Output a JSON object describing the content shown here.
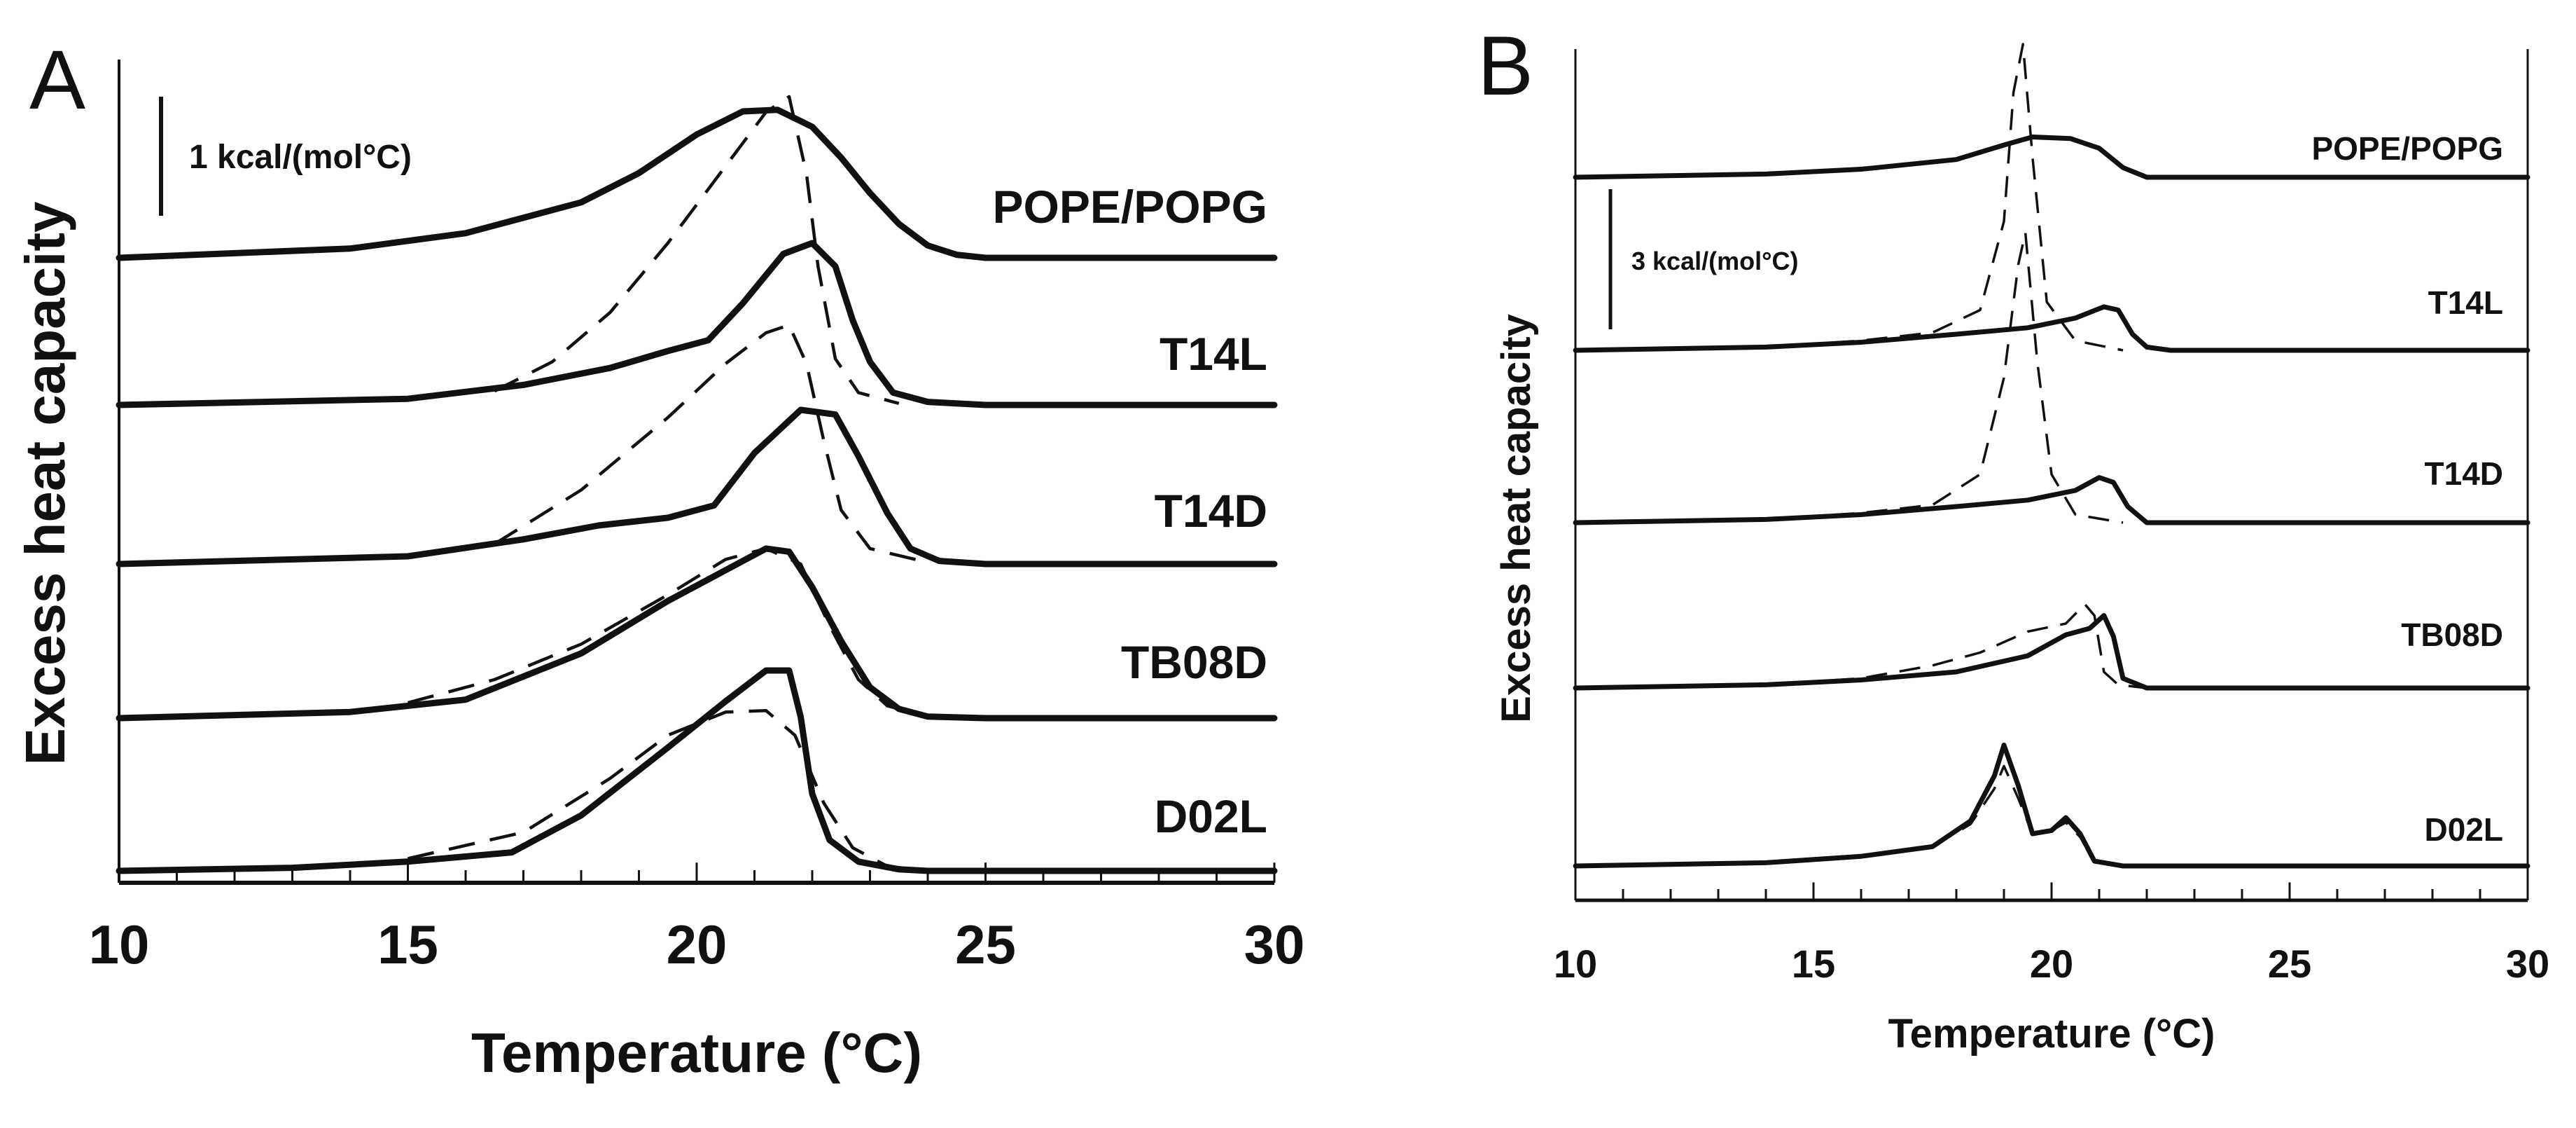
{
  "chart_data": [
    {
      "panel": "A",
      "type": "line",
      "title": "",
      "xlabel": "Temperature (°C)",
      "ylabel": "Excess heat capacity",
      "xlim": [
        10,
        30
      ],
      "xticks": [
        "10",
        "15",
        "20",
        "25",
        "30"
      ],
      "scale_bar": "1 kcal/(mol°C)",
      "series": [
        {
          "name": "POPE/POPG",
          "solid": [
            [
              10,
              0
            ],
            [
              14,
              0.06
            ],
            [
              16,
              0.16
            ],
            [
              18,
              0.36
            ],
            [
              19,
              0.55
            ],
            [
              20,
              0.8
            ],
            [
              20.8,
              0.95
            ],
            [
              21.4,
              0.96
            ],
            [
              22,
              0.85
            ],
            [
              22.5,
              0.65
            ],
            [
              23,
              0.42
            ],
            [
              23.5,
              0.22
            ],
            [
              24,
              0.08
            ],
            [
              24.5,
              0.02
            ],
            [
              25,
              0
            ],
            [
              30,
              0
            ]
          ],
          "dashed": []
        },
        {
          "name": "T14L",
          "solid": [
            [
              10,
              0
            ],
            [
              15,
              0.04
            ],
            [
              17,
              0.13
            ],
            [
              18.5,
              0.24
            ],
            [
              19.5,
              0.35
            ],
            [
              20.2,
              0.42
            ],
            [
              20.8,
              0.66
            ],
            [
              21.5,
              0.98
            ],
            [
              22,
              1.05
            ],
            [
              22.4,
              0.9
            ],
            [
              22.7,
              0.55
            ],
            [
              23,
              0.28
            ],
            [
              23.4,
              0.08
            ],
            [
              24,
              0.02
            ],
            [
              25,
              0
            ],
            [
              30,
              0
            ]
          ],
          "dashed": [
            [
              16.5,
              0.09
            ],
            [
              17.5,
              0.28
            ],
            [
              18.5,
              0.6
            ],
            [
              19.5,
              1.05
            ],
            [
              20.5,
              1.55
            ],
            [
              21.2,
              1.9
            ],
            [
              21.6,
              2.0
            ],
            [
              21.9,
              1.5
            ],
            [
              22.1,
              0.9
            ],
            [
              22.4,
              0.3
            ],
            [
              22.8,
              0.08
            ],
            [
              23.5,
              0.01
            ]
          ]
        },
        {
          "name": "T14D",
          "solid": [
            [
              10,
              0
            ],
            [
              15,
              0.05
            ],
            [
              17,
              0.16
            ],
            [
              18.3,
              0.25
            ],
            [
              19.5,
              0.3
            ],
            [
              20.3,
              0.38
            ],
            [
              21,
              0.72
            ],
            [
              21.8,
              1.0
            ],
            [
              22.4,
              0.97
            ],
            [
              22.8,
              0.7
            ],
            [
              23.3,
              0.33
            ],
            [
              23.7,
              0.1
            ],
            [
              24.2,
              0.02
            ],
            [
              25,
              0
            ],
            [
              30,
              0
            ]
          ],
          "dashed": [
            [
              16.5,
              0.13
            ],
            [
              18,
              0.48
            ],
            [
              19.5,
              0.95
            ],
            [
              20.5,
              1.3
            ],
            [
              21.2,
              1.5
            ],
            [
              21.6,
              1.55
            ],
            [
              21.9,
              1.3
            ],
            [
              22.2,
              0.8
            ],
            [
              22.5,
              0.35
            ],
            [
              23,
              0.1
            ],
            [
              24,
              0.01
            ]
          ]
        },
        {
          "name": "TB08D",
          "solid": [
            [
              10,
              0
            ],
            [
              14,
              0.04
            ],
            [
              16,
              0.12
            ],
            [
              18,
              0.42
            ],
            [
              19.5,
              0.76
            ],
            [
              20.5,
              0.96
            ],
            [
              21.2,
              1.1
            ],
            [
              21.6,
              1.08
            ],
            [
              22,
              0.85
            ],
            [
              22.5,
              0.5
            ],
            [
              23,
              0.2
            ],
            [
              23.5,
              0.06
            ],
            [
              24,
              0.01
            ],
            [
              25,
              0
            ],
            [
              30,
              0
            ]
          ],
          "dashed": [
            [
              15,
              0.1
            ],
            [
              16.5,
              0.25
            ],
            [
              18,
              0.48
            ],
            [
              19.5,
              0.8
            ],
            [
              20.5,
              1.03
            ],
            [
              21.2,
              1.1
            ],
            [
              21.8,
              1.0
            ],
            [
              22.3,
              0.6
            ],
            [
              22.8,
              0.25
            ],
            [
              23.3,
              0.08
            ],
            [
              24,
              0.01
            ]
          ]
        },
        {
          "name": "D02L",
          "solid": [
            [
              10,
              0
            ],
            [
              13,
              0.02
            ],
            [
              15,
              0.06
            ],
            [
              16.8,
              0.12
            ],
            [
              18,
              0.36
            ],
            [
              19.5,
              0.8
            ],
            [
              20.5,
              1.1
            ],
            [
              21.2,
              1.3
            ],
            [
              21.6,
              1.3
            ],
            [
              21.8,
              1.0
            ],
            [
              22,
              0.5
            ],
            [
              22.3,
              0.2
            ],
            [
              22.8,
              0.06
            ],
            [
              23.5,
              0.01
            ],
            [
              24,
              0
            ],
            [
              30,
              0
            ]
          ],
          "dashed": [
            [
              15,
              0.08
            ],
            [
              17,
              0.25
            ],
            [
              18.5,
              0.6
            ],
            [
              19.5,
              0.88
            ],
            [
              20.5,
              1.03
            ],
            [
              21.2,
              1.04
            ],
            [
              21.7,
              0.88
            ],
            [
              22.2,
              0.44
            ],
            [
              22.7,
              0.15
            ],
            [
              23.3,
              0.03
            ],
            [
              24,
              0
            ]
          ]
        }
      ]
    },
    {
      "panel": "B",
      "type": "line",
      "title": "",
      "xlabel": "Temperature (°C)",
      "ylabel": "Excess heat capacity",
      "xlim": [
        10,
        30
      ],
      "xticks": [
        "10",
        "15",
        "20",
        "25",
        "30"
      ],
      "scale_bar": "3 kcal/(mol°C)",
      "series": [
        {
          "name": "POPE/POPG",
          "solid": [
            [
              10,
              0
            ],
            [
              14,
              0.02
            ],
            [
              16,
              0.05
            ],
            [
              18,
              0.11
            ],
            [
              19,
              0.2
            ],
            [
              19.6,
              0.25
            ],
            [
              20.4,
              0.24
            ],
            [
              21,
              0.18
            ],
            [
              21.5,
              0.06
            ],
            [
              22,
              0
            ],
            [
              30,
              0
            ]
          ],
          "dashed": []
        },
        {
          "name": "T14L",
          "solid": [
            [
              10,
              0
            ],
            [
              14,
              0.02
            ],
            [
              16,
              0.05
            ],
            [
              18,
              0.1
            ],
            [
              19.5,
              0.14
            ],
            [
              20.5,
              0.2
            ],
            [
              21.1,
              0.27
            ],
            [
              21.4,
              0.25
            ],
            [
              21.7,
              0.1
            ],
            [
              22,
              0.02
            ],
            [
              22.5,
              0
            ],
            [
              30,
              0
            ]
          ],
          "dashed": [
            [
              14,
              0.02
            ],
            [
              16,
              0.06
            ],
            [
              17.5,
              0.11
            ],
            [
              18.5,
              0.25
            ],
            [
              19,
              0.8
            ],
            [
              19.2,
              1.6
            ],
            [
              19.4,
              1.9
            ],
            [
              19.6,
              1.2
            ],
            [
              19.9,
              0.3
            ],
            [
              20.5,
              0.06
            ],
            [
              21.5,
              0
            ]
          ]
        },
        {
          "name": "T14D",
          "solid": [
            [
              10,
              0
            ],
            [
              14,
              0.02
            ],
            [
              16,
              0.05
            ],
            [
              18,
              0.1
            ],
            [
              19.5,
              0.14
            ],
            [
              20.5,
              0.2
            ],
            [
              21,
              0.28
            ],
            [
              21.3,
              0.25
            ],
            [
              21.6,
              0.1
            ],
            [
              22,
              0
            ],
            [
              30,
              0
            ]
          ],
          "dashed": [
            [
              14,
              0.02
            ],
            [
              16,
              0.06
            ],
            [
              17.5,
              0.11
            ],
            [
              18.5,
              0.3
            ],
            [
              19,
              0.9
            ],
            [
              19.3,
              1.6
            ],
            [
              19.45,
              1.8
            ],
            [
              19.7,
              1.0
            ],
            [
              20,
              0.3
            ],
            [
              20.5,
              0.05
            ],
            [
              21.5,
              0
            ]
          ]
        },
        {
          "name": "TB08D",
          "solid": [
            [
              10,
              0
            ],
            [
              14,
              0.02
            ],
            [
              16,
              0.05
            ],
            [
              18,
              0.1
            ],
            [
              19.5,
              0.2
            ],
            [
              20.3,
              0.33
            ],
            [
              20.8,
              0.37
            ],
            [
              21.1,
              0.45
            ],
            [
              21.3,
              0.32
            ],
            [
              21.5,
              0.06
            ],
            [
              22,
              0
            ],
            [
              30,
              0
            ]
          ],
          "dashed": [
            [
              14,
              0.02
            ],
            [
              16,
              0.06
            ],
            [
              17.5,
              0.14
            ],
            [
              18.5,
              0.22
            ],
            [
              19.5,
              0.35
            ],
            [
              20.3,
              0.4
            ],
            [
              20.7,
              0.52
            ],
            [
              20.9,
              0.45
            ],
            [
              21.1,
              0.1
            ],
            [
              21.4,
              0.02
            ],
            [
              22,
              0
            ]
          ]
        },
        {
          "name": "D02L",
          "solid": [
            [
              10,
              0
            ],
            [
              14,
              0.02
            ],
            [
              16,
              0.06
            ],
            [
              17.5,
              0.12
            ],
            [
              18.3,
              0.28
            ],
            [
              18.8,
              0.56
            ],
            [
              19,
              0.75
            ],
            [
              19.3,
              0.5
            ],
            [
              19.6,
              0.2
            ],
            [
              20,
              0.22
            ],
            [
              20.3,
              0.3
            ],
            [
              20.6,
              0.2
            ],
            [
              20.9,
              0.03
            ],
            [
              21.5,
              0
            ],
            [
              30,
              0
            ]
          ],
          "dashed": [
            [
              14,
              0.02
            ],
            [
              16,
              0.06
            ],
            [
              17.5,
              0.12
            ],
            [
              18.3,
              0.26
            ],
            [
              18.8,
              0.48
            ],
            [
              19,
              0.62
            ],
            [
              19.3,
              0.42
            ],
            [
              19.6,
              0.2
            ],
            [
              20,
              0.22
            ],
            [
              20.3,
              0.27
            ],
            [
              20.6,
              0.18
            ],
            [
              20.9,
              0.03
            ],
            [
              21.5,
              0
            ]
          ]
        }
      ]
    }
  ]
}
